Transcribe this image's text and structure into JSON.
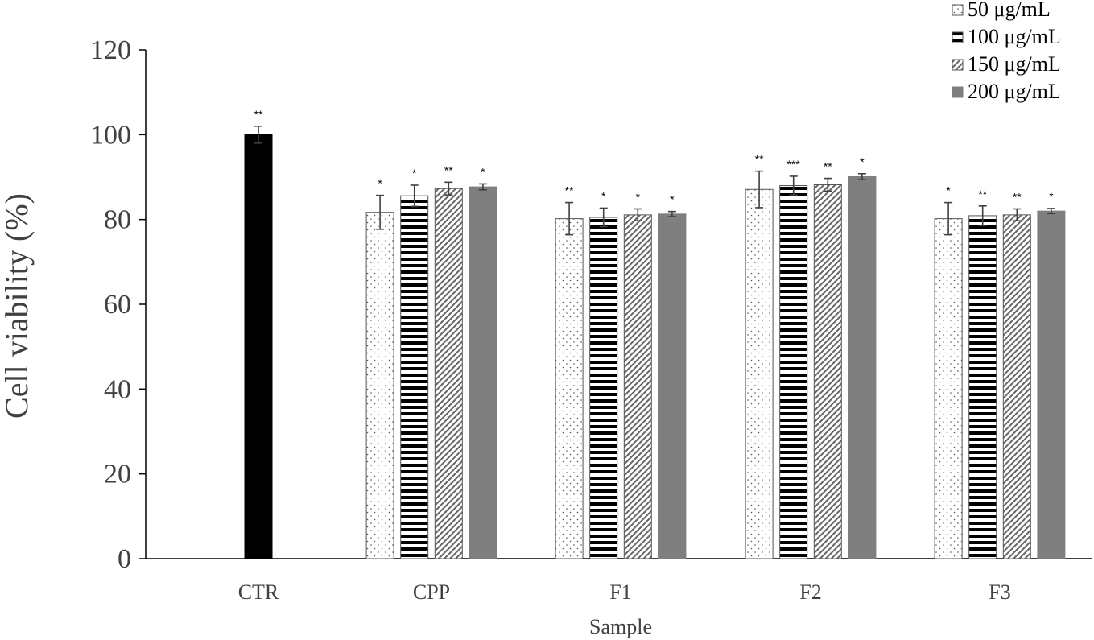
{
  "chart_data": {
    "type": "bar",
    "xlabel": "Sample",
    "ylabel": "Cell viability (%)",
    "ylim": [
      0,
      120
    ],
    "yticks": [
      0,
      20,
      40,
      60,
      80,
      100,
      120
    ],
    "grid": false,
    "legend_position": "top-right",
    "categories": [
      "CTR",
      "CPP",
      "F1",
      "F2",
      "F3"
    ],
    "control": {
      "category": "CTR",
      "value": 100,
      "error": 2.0,
      "significance": "**",
      "color": "#000000"
    },
    "series": [
      {
        "name": "50 μg/mL",
        "pattern": "dots",
        "values": [
          null,
          81.7,
          80.2,
          87.1,
          80.2
        ],
        "errors": [
          null,
          4.0,
          3.8,
          4.3,
          3.8
        ],
        "significance": [
          null,
          "*",
          "**",
          "**",
          "*"
        ]
      },
      {
        "name": "100 μg/mL",
        "pattern": "horizontal-stripes",
        "values": [
          null,
          85.6,
          80.5,
          88.0,
          80.9
        ],
        "errors": [
          null,
          2.5,
          2.2,
          2.2,
          2.3
        ],
        "significance": [
          null,
          "*",
          "*",
          "***",
          "**"
        ]
      },
      {
        "name": "150 μg/mL",
        "pattern": "diagonal-hatch",
        "values": [
          null,
          87.3,
          81.1,
          88.2,
          81.1
        ],
        "errors": [
          null,
          1.5,
          1.4,
          1.5,
          1.4
        ],
        "significance": [
          null,
          "**",
          "*",
          "**",
          "**"
        ]
      },
      {
        "name": "200 μg/mL",
        "pattern": "solid-gray",
        "values": [
          null,
          87.7,
          81.3,
          90.1,
          82.0
        ],
        "errors": [
          null,
          0.7,
          0.6,
          0.7,
          0.6
        ],
        "significance": [
          null,
          "*",
          "*",
          "*",
          "*"
        ]
      }
    ],
    "colors": {
      "axis": "#000000",
      "text": "#404040",
      "solid_gray": "#7f7f7f",
      "control": "#000000"
    }
  }
}
